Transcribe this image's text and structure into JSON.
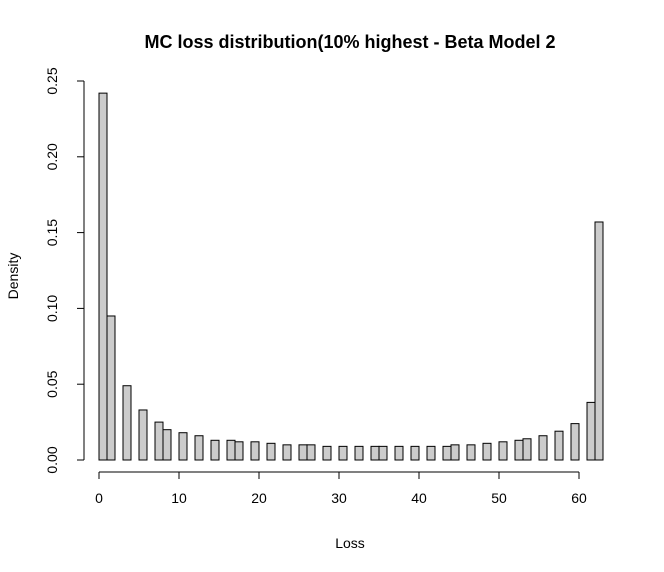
{
  "chart_data": {
    "type": "bar",
    "title": "MC loss distribution(10% highest - Beta  Model 2",
    "xlabel": "Loss",
    "ylabel": "Density",
    "xlim": [
      0,
      63
    ],
    "ylim": [
      0,
      0.25
    ],
    "x_ticks": [
      "0",
      "10",
      "20",
      "30",
      "40",
      "50",
      "60"
    ],
    "x_tick_values": [
      0,
      10,
      20,
      30,
      40,
      50,
      60
    ],
    "y_ticks": [
      "0.00",
      "0.05",
      "0.10",
      "0.15",
      "0.20",
      "0.25"
    ],
    "y_tick_values": [
      0,
      0.05,
      0.1,
      0.15,
      0.2,
      0.25
    ],
    "grid": false,
    "bar_fill": "#cccccc",
    "bar_stroke": "#000000",
    "bars": [
      {
        "x0": 0.0,
        "x1": 1.0,
        "value": 0.242
      },
      {
        "x0": 1.0,
        "x1": 2.0,
        "value": 0.095
      },
      {
        "x0": 3.0,
        "x1": 4.0,
        "value": 0.049
      },
      {
        "x0": 5.0,
        "x1": 6.0,
        "value": 0.033
      },
      {
        "x0": 7.0,
        "x1": 8.0,
        "value": 0.025
      },
      {
        "x0": 8.0,
        "x1": 9.0,
        "value": 0.02
      },
      {
        "x0": 10.0,
        "x1": 11.0,
        "value": 0.018
      },
      {
        "x0": 12.0,
        "x1": 13.0,
        "value": 0.016
      },
      {
        "x0": 14.0,
        "x1": 15.0,
        "value": 0.013
      },
      {
        "x0": 16.0,
        "x1": 17.0,
        "value": 0.013
      },
      {
        "x0": 17.0,
        "x1": 18.0,
        "value": 0.012
      },
      {
        "x0": 19.0,
        "x1": 20.0,
        "value": 0.012
      },
      {
        "x0": 21.0,
        "x1": 22.0,
        "value": 0.011
      },
      {
        "x0": 23.0,
        "x1": 24.0,
        "value": 0.01
      },
      {
        "x0": 25.0,
        "x1": 26.0,
        "value": 0.01
      },
      {
        "x0": 26.0,
        "x1": 27.0,
        "value": 0.01
      },
      {
        "x0": 28.0,
        "x1": 29.0,
        "value": 0.009
      },
      {
        "x0": 30.0,
        "x1": 31.0,
        "value": 0.009
      },
      {
        "x0": 32.0,
        "x1": 33.0,
        "value": 0.009
      },
      {
        "x0": 34.0,
        "x1": 35.0,
        "value": 0.009
      },
      {
        "x0": 35.0,
        "x1": 36.0,
        "value": 0.009
      },
      {
        "x0": 37.0,
        "x1": 38.0,
        "value": 0.009
      },
      {
        "x0": 39.0,
        "x1": 40.0,
        "value": 0.009
      },
      {
        "x0": 41.0,
        "x1": 42.0,
        "value": 0.009
      },
      {
        "x0": 43.0,
        "x1": 44.0,
        "value": 0.009
      },
      {
        "x0": 44.0,
        "x1": 45.0,
        "value": 0.01
      },
      {
        "x0": 46.0,
        "x1": 47.0,
        "value": 0.01
      },
      {
        "x0": 48.0,
        "x1": 49.0,
        "value": 0.011
      },
      {
        "x0": 50.0,
        "x1": 51.0,
        "value": 0.012
      },
      {
        "x0": 52.0,
        "x1": 53.0,
        "value": 0.013
      },
      {
        "x0": 53.0,
        "x1": 54.0,
        "value": 0.014
      },
      {
        "x0": 55.0,
        "x1": 56.0,
        "value": 0.016
      },
      {
        "x0": 57.0,
        "x1": 58.0,
        "value": 0.019
      },
      {
        "x0": 59.0,
        "x1": 60.0,
        "value": 0.024
      },
      {
        "x0": 61.0,
        "x1": 62.0,
        "value": 0.038
      },
      {
        "x0": 62.0,
        "x1": 63.0,
        "value": 0.157
      }
    ]
  }
}
